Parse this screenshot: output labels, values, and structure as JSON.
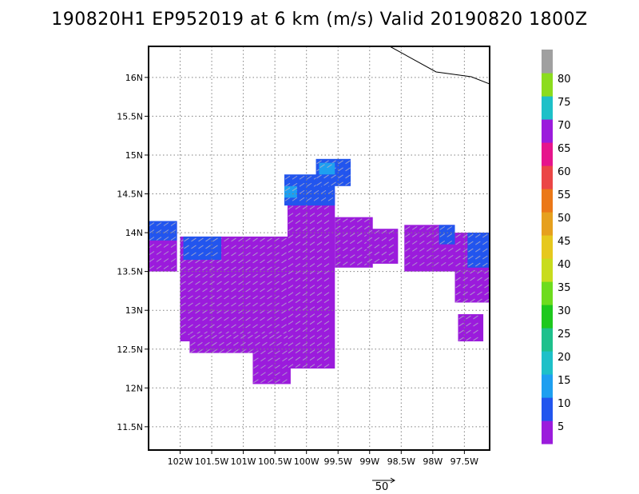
{
  "title": "190820H1 EP952019 at 6 km (m/s) Valid 20190820 1800Z",
  "chart_data": {
    "type": "heatmap",
    "title": "190820H1 EP952019 at 6 km (m/s) Valid 20190820 1800Z",
    "xlabel": "",
    "ylabel": "",
    "x_range": [
      -102.5,
      -97.1
    ],
    "y_range": [
      11.2,
      16.4
    ],
    "x_ticks": [
      -102,
      -101.5,
      -101,
      -100.5,
      -100,
      -99.5,
      -99,
      -98.5,
      -98,
      -97.5
    ],
    "x_tick_labels": [
      "102W",
      "101.5W",
      "101W",
      "100.5W",
      "100W",
      "99.5W",
      "99W",
      "98.5W",
      "98W",
      "97.5W"
    ],
    "y_ticks": [
      11.5,
      12,
      12.5,
      13,
      13.5,
      14,
      14.5,
      15,
      15.5,
      16
    ],
    "y_tick_labels": [
      "11.5N",
      "12N",
      "12.5N",
      "13N",
      "13.5N",
      "14N",
      "14.5N",
      "15N",
      "15.5N",
      "16N"
    ],
    "grid": true,
    "colorbar": {
      "labels": [
        "5",
        "10",
        "15",
        "20",
        "25",
        "30",
        "35",
        "40",
        "45",
        "50",
        "55",
        "60",
        "65",
        "70",
        "75",
        "80"
      ],
      "colors": [
        "#9b1bdc",
        "#2255ee",
        "#1e9ff0",
        "#1ec0c8",
        "#1ec08c",
        "#1ec81e",
        "#6edc1e",
        "#c8dc1e",
        "#e6c81e",
        "#e6a01e",
        "#eb7818",
        "#eb4646",
        "#e6148c",
        "#9b1bdc",
        "#1ec0c8",
        "#8cdc1e",
        "#a0a0a0"
      ]
    },
    "wind_regions": [
      {
        "speed_class": "5",
        "lon": [
          -102.5,
          -102.05
        ],
        "lat": [
          13.5,
          14.15
        ]
      },
      {
        "speed_class": "5",
        "lon": [
          -102.0,
          -100.25
        ],
        "lat": [
          12.6,
          13.95
        ]
      },
      {
        "speed_class": "5",
        "lon": [
          -101.85,
          -100.25
        ],
        "lat": [
          12.45,
          12.7
        ]
      },
      {
        "speed_class": "5",
        "lon": [
          -100.85,
          -100.25
        ],
        "lat": [
          12.05,
          12.5
        ]
      },
      {
        "speed_class": "5",
        "lon": [
          -100.3,
          -99.55
        ],
        "lat": [
          12.25,
          14.55
        ]
      },
      {
        "speed_class": "5",
        "lon": [
          -99.55,
          -98.95
        ],
        "lat": [
          13.55,
          14.2
        ]
      },
      {
        "speed_class": "5",
        "lon": [
          -99.05,
          -98.55
        ],
        "lat": [
          13.6,
          14.05
        ]
      },
      {
        "speed_class": "5",
        "lon": [
          -98.45,
          -97.65
        ],
        "lat": [
          13.5,
          14.1
        ]
      },
      {
        "speed_class": "5",
        "lon": [
          -97.65,
          -97.1
        ],
        "lat": [
          13.1,
          14.0
        ]
      },
      {
        "speed_class": "5",
        "lon": [
          -97.6,
          -97.2
        ],
        "lat": [
          12.6,
          12.95
        ]
      },
      {
        "speed_class": "10",
        "lon": [
          -102.5,
          -102.05
        ],
        "lat": [
          13.9,
          14.15
        ]
      },
      {
        "speed_class": "10",
        "lon": [
          -101.95,
          -101.35
        ],
        "lat": [
          13.65,
          13.95
        ]
      },
      {
        "speed_class": "10",
        "lon": [
          -100.35,
          -99.55
        ],
        "lat": [
          14.35,
          14.75
        ]
      },
      {
        "speed_class": "10",
        "lon": [
          -99.85,
          -99.3
        ],
        "lat": [
          14.6,
          14.95
        ]
      },
      {
        "speed_class": "10",
        "lon": [
          -97.9,
          -97.65
        ],
        "lat": [
          13.85,
          14.1
        ]
      },
      {
        "speed_class": "10",
        "lon": [
          -97.45,
          -97.1
        ],
        "lat": [
          13.55,
          14.0
        ]
      },
      {
        "speed_class": "15",
        "lon": [
          -100.35,
          -100.15
        ],
        "lat": [
          14.45,
          14.6
        ]
      },
      {
        "speed_class": "15",
        "lon": [
          -99.8,
          -99.55
        ],
        "lat": [
          14.75,
          14.9
        ]
      }
    ],
    "reference_vector": {
      "label": "50",
      "units": "m/s"
    }
  }
}
